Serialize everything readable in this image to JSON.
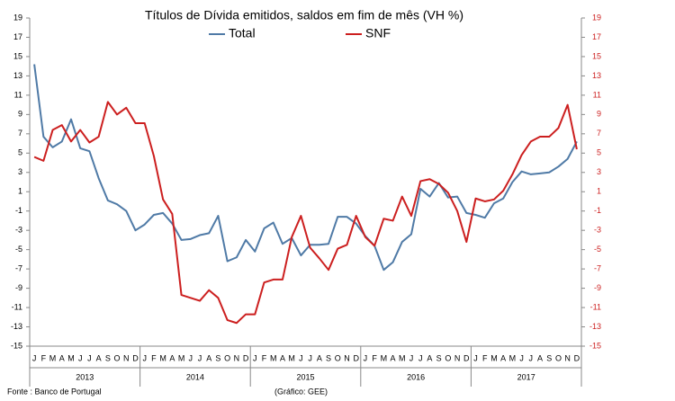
{
  "chart_data": {
    "type": "line",
    "title": "Títulos de Dívida emitidos, saldos em fim de mês  (VH %)",
    "categories": [
      "J",
      "F",
      "M",
      "A",
      "M",
      "J",
      "J",
      "A",
      "S",
      "O",
      "N",
      "D",
      "J",
      "F",
      "M",
      "A",
      "M",
      "J",
      "J",
      "A",
      "S",
      "O",
      "N",
      "D",
      "J",
      "F",
      "M",
      "A",
      "M",
      "J",
      "J",
      "A",
      "S",
      "O",
      "N",
      "D",
      "J",
      "F",
      "M",
      "A",
      "M",
      "J",
      "J",
      "A",
      "S",
      "O",
      "N",
      "D",
      "J",
      "F",
      "M",
      "A",
      "M",
      "J",
      "J",
      "A",
      "S",
      "O",
      "N",
      "D"
    ],
    "years": [
      "2013",
      "2014",
      "2015",
      "2016",
      "2017"
    ],
    "series": [
      {
        "name": "Total",
        "color": "#4f7aa6",
        "values": [
          14.2,
          6.7,
          5.6,
          6.2,
          8.5,
          5.5,
          5.2,
          2.4,
          0.1,
          -0.3,
          -1.0,
          -3.0,
          -2.4,
          -1.4,
          -1.2,
          -2.3,
          -4.0,
          -3.9,
          -3.5,
          -3.3,
          -1.5,
          -6.2,
          -5.8,
          -4.0,
          -5.2,
          -2.8,
          -2.2,
          -4.4,
          -3.8,
          -5.6,
          -4.5,
          -4.5,
          -4.4,
          -1.6,
          -1.6,
          -2.3,
          -3.6,
          -4.6,
          -7.1,
          -6.3,
          -4.2,
          -3.4,
          1.3,
          0.5,
          1.9,
          0.4,
          0.5,
          -1.2,
          -1.4,
          -1.7,
          -0.2,
          0.3,
          2.0,
          3.1,
          2.8,
          2.9,
          3.0,
          3.6,
          4.4,
          6.2
        ]
      },
      {
        "name": "SNF",
        "color": "#cc1f1f",
        "axis": "y2",
        "values": [
          4.6,
          4.2,
          7.4,
          7.9,
          6.2,
          7.4,
          6.1,
          6.7,
          10.3,
          9.0,
          9.7,
          8.1,
          8.1,
          4.7,
          0.2,
          -1.3,
          -9.7,
          -10.0,
          -10.3,
          -9.2,
          -10.0,
          -12.3,
          -12.6,
          -11.7,
          -11.7,
          -8.4,
          -8.1,
          -8.1,
          -3.7,
          -1.5,
          -4.8,
          -5.9,
          -7.1,
          -4.9,
          -4.5,
          -1.5,
          -3.7,
          -4.6,
          -1.8,
          -2.0,
          0.5,
          -1.5,
          2.1,
          2.3,
          1.8,
          0.9,
          -1.0,
          -4.2,
          0.3,
          0.0,
          0.2,
          1.1,
          2.8,
          4.8,
          6.2,
          6.7,
          6.7,
          7.6,
          10.0,
          5.4
        ]
      }
    ],
    "ylim": [
      -15,
      19
    ],
    "yticks": [
      -15,
      -13,
      -11,
      -9,
      -7,
      -5,
      -3,
      -1,
      1,
      3,
      5,
      7,
      9,
      11,
      13,
      15,
      17,
      19
    ],
    "y2lim": [
      -15,
      19
    ],
    "y2ticks": [
      -15,
      -13,
      -11,
      -9,
      -7,
      -5,
      -3,
      -1,
      1,
      3,
      5,
      7,
      9,
      11,
      13,
      15,
      17,
      19
    ],
    "y2_color": "#cc1f1f",
    "source": "Fonte : Banco de Portugal",
    "credit": "(Gráfico: GEE)"
  }
}
